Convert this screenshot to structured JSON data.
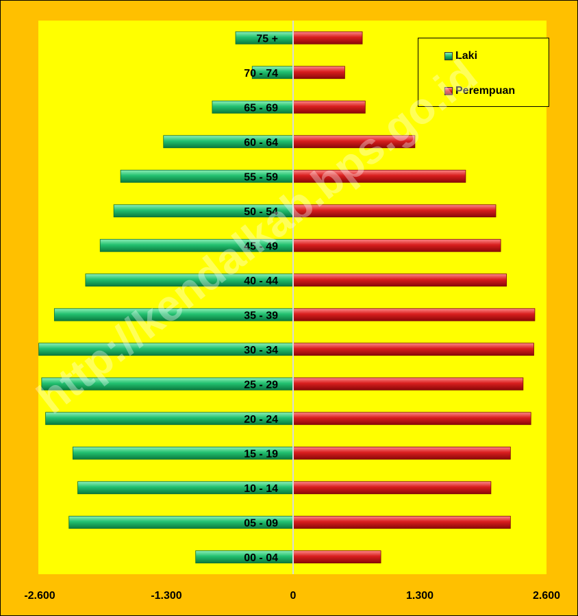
{
  "chart_data": {
    "type": "bar",
    "orientation": "horizontal",
    "subtype": "population-pyramid",
    "categories": [
      "00 - 04",
      "05 - 09",
      "10 - 14",
      "15 - 19",
      "20 - 24",
      "25 - 29",
      "30 - 34",
      "35 - 39",
      "40 - 44",
      "45 - 49",
      "50 - 54",
      "55 - 59",
      "60 - 64",
      "65 - 69",
      "70 - 74",
      "75 +"
    ],
    "series": [
      {
        "name": "Laki",
        "color": "#1FB86A",
        "values": [
          -1000,
          -2300,
          -2210,
          -2260,
          -2540,
          -2580,
          -2610,
          -2450,
          -2130,
          -1980,
          -1840,
          -1770,
          -1330,
          -830,
          -420,
          -590
        ]
      },
      {
        "name": "Perempuan",
        "color": "#D91E1E",
        "values": [
          900,
          2230,
          2030,
          2230,
          2440,
          2360,
          2470,
          2480,
          2190,
          2130,
          2080,
          1770,
          1250,
          740,
          530,
          710
        ]
      }
    ],
    "xlim": [
      -2600,
      2600
    ],
    "x_ticks": [
      "-2.600",
      "-1.300",
      "0",
      "1.300",
      "2.600"
    ],
    "x_tick_values": [
      -2600,
      -1300,
      0,
      1300,
      2600
    ],
    "legend_position": "top-right",
    "grid": false,
    "title": "",
    "xlabel": "",
    "ylabel": ""
  },
  "watermark": "http://kendalkab.bps.go.id"
}
